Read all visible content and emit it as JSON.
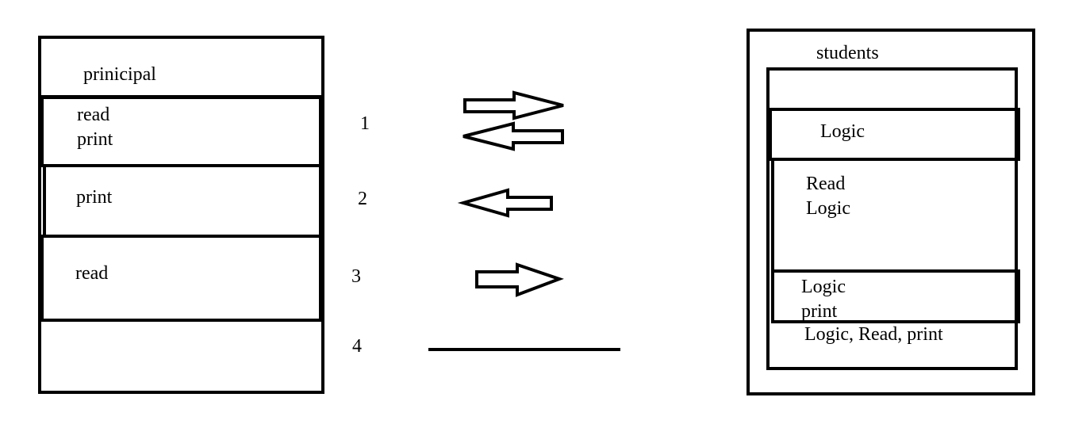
{
  "principal": {
    "title": "prinicipal",
    "rows": [
      "read\nprint",
      "print",
      "read",
      ""
    ]
  },
  "students": {
    "title": "students",
    "rows": [
      "",
      "Logic",
      "Read\nLogic",
      "Logic\nprint",
      "Logic, Read, print"
    ]
  },
  "relations": [
    {
      "number": "1",
      "arrows": "both"
    },
    {
      "number": "2",
      "arrows": "left"
    },
    {
      "number": "3",
      "arrows": "right"
    },
    {
      "number": "4",
      "arrows": "line"
    }
  ]
}
